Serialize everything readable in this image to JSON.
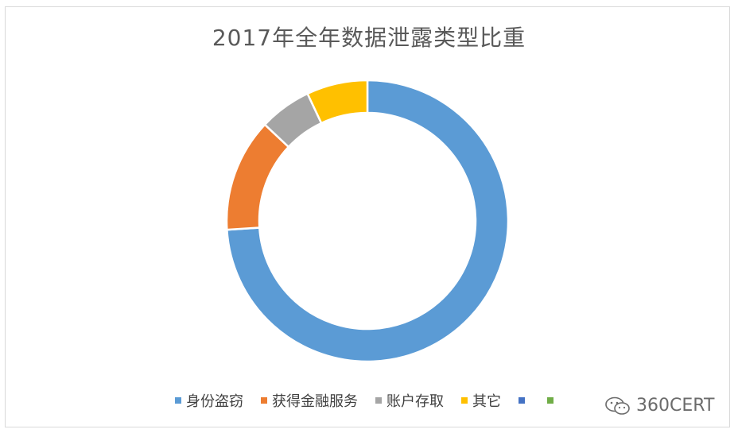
{
  "chart_data": {
    "type": "pie",
    "style": "donut",
    "title": "2017年全年数据泄露类型比重",
    "slices": [
      {
        "name": "身份盗窃",
        "value": 74,
        "color": "#5B9BD5"
      },
      {
        "name": "获得金融服务",
        "value": 13,
        "color": "#ED7D31"
      },
      {
        "name": "账户存取",
        "value": 6,
        "color": "#A5A5A5"
      },
      {
        "name": "其它",
        "value": 7,
        "color": "#FFC000"
      }
    ],
    "legend": {
      "placement": "bottom",
      "extra_entries": [
        {
          "name": "",
          "color": "#4472C4"
        },
        {
          "name": "",
          "color": "#70AD47"
        }
      ]
    }
  },
  "watermark": {
    "text": "360CERT",
    "icon": "wechat-icon"
  }
}
